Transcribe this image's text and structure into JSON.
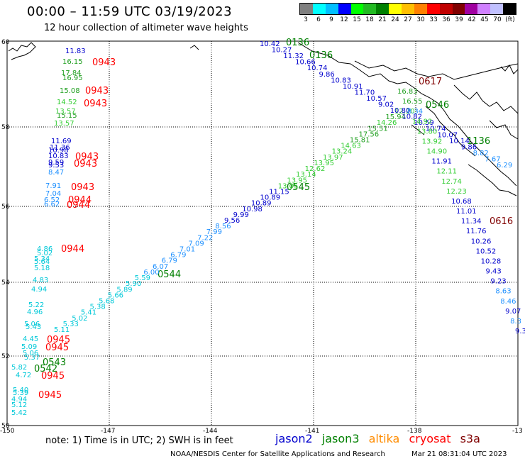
{
  "header": {
    "title": "00:00 – 11:59 UTC 03/19/2023",
    "subtitle": "12 hour collection of altimeter wave heights"
  },
  "scale": {
    "colors": [
      "#808080",
      "#00ffff",
      "#00bfff",
      "#0000ff",
      "#00ff00",
      "#22bb22",
      "#008000",
      "#ffff00",
      "#ffbf00",
      "#ff8000",
      "#ff0000",
      "#c00000",
      "#800000",
      "#a000a0",
      "#d080ff",
      "#c0c0ff",
      "#000000"
    ],
    "ticks": [
      "3",
      "6",
      "9",
      "12",
      "15",
      "18",
      "21",
      "24",
      "27",
      "30",
      "33",
      "36",
      "39",
      "42",
      "45",
      "70",
      "(ft)"
    ]
  },
  "axes": {
    "lat_labels": [
      "60",
      "58",
      "56",
      "54",
      "52",
      "50"
    ],
    "lon_labels": [
      "-150",
      "-147",
      "-144",
      "-141",
      "-138",
      "-13"
    ]
  },
  "colors": {
    "jason2": "#00008b",
    "jason3": "#008000",
    "altika": "#ff8c00",
    "cryosat": "#ff0000",
    "s3a": "#800000",
    "coast": "#000000",
    "grid": "#000000"
  },
  "track_labels": {
    "jason3_a": "0136",
    "jason3_b": "0136",
    "s3a_a": "0617",
    "jason3_c": "0546",
    "jason3_d": "0545",
    "jason3_e": "0544",
    "s3a_b": "0616",
    "jason3_f": "0543",
    "jason3_g": "0542",
    "cryosat_a": "0943",
    "cryosat_b": "0943",
    "cryosat_c": "0943",
    "cryosat_d": "0943",
    "cryosat_e": "0943",
    "cryosat_f": "0943",
    "cryosat_g": "0944",
    "cryosat_h": "0944",
    "cryosat_i": "0944",
    "cryosat_j": "0945",
    "cryosat_k": "0945",
    "cryosat_l": "0945",
    "cryosat_m": "0945",
    "jason3_h": "1136"
  },
  "wave_values": {
    "left_column": [
      "11.83",
      "16.15",
      "17.84",
      "16.95",
      "15.08",
      "14.52",
      "13.57",
      "15.15",
      "13.57",
      "11.69",
      "11.36",
      "10.98",
      "10.83",
      "9.59",
      "9.53",
      "8.47",
      "7.91",
      "7.04",
      "6.52",
      "6.62",
      "4.86",
      "5.02",
      "5.34",
      "5.64",
      "5.18",
      "4.83",
      "4.94",
      "5.22",
      "4.96",
      "5.06",
      "5.43",
      "4.45",
      "5.09",
      "5.06",
      "5.37",
      "5.82",
      "4.72",
      "5.40",
      "5.39",
      "4.94",
      "5.12",
      "5.42"
    ],
    "diagonal_track": [
      "5.11",
      "5.33",
      "5.02",
      "5.41",
      "5.38",
      "5.68",
      "5.66",
      "5.89",
      "5.90",
      "5.59",
      "6.00",
      "6.07",
      "6.79",
      "6.79",
      "7.01",
      "7.09",
      "7.22",
      "7.99",
      "8.56",
      "9.56",
      "9.99",
      "10.98",
      "10.89",
      "10.89",
      "11.15",
      "13.05",
      "13.95",
      "13.14",
      "12.62",
      "13.95",
      "13.97",
      "13.24",
      "14.63",
      "15.81",
      "17.56",
      "15.51",
      "14.26",
      "15.94",
      "12.20"
    ],
    "top_track": [
      "10.42",
      "10.27",
      "11.32",
      "10.66",
      "10.74",
      "9.86",
      "10.83",
      "10.91",
      "11.70",
      "10.57",
      "9.02",
      "10.80",
      "10.82",
      "10.59",
      "10.74",
      "10.07",
      "10.14",
      "9.86",
      "8.82",
      "7.67",
      "6.29"
    ],
    "right_track": [
      "16.83",
      "16.55",
      "8.34",
      "14.92",
      "13.80",
      "13.92",
      "14.90",
      "11.91",
      "12.11",
      "12.74",
      "12.23",
      "10.68",
      "11.01",
      "11.34",
      "11.76",
      "10.26",
      "10.52",
      "10.28",
      "9.43",
      "9.23",
      "8.63",
      "8.46",
      "9.07",
      "8.3",
      "9.3"
    ]
  },
  "footer": {
    "note": "note:  1) Time is in UTC;  2) SWH is in feet",
    "legend": [
      "jason2",
      "jason3",
      "altika",
      "cryosat",
      "s3a"
    ],
    "credit": "NOAA/NESDIS Center for Satellite Applications and Research",
    "timestamp": "Mar 21 08:31:04 UTC 2023"
  }
}
